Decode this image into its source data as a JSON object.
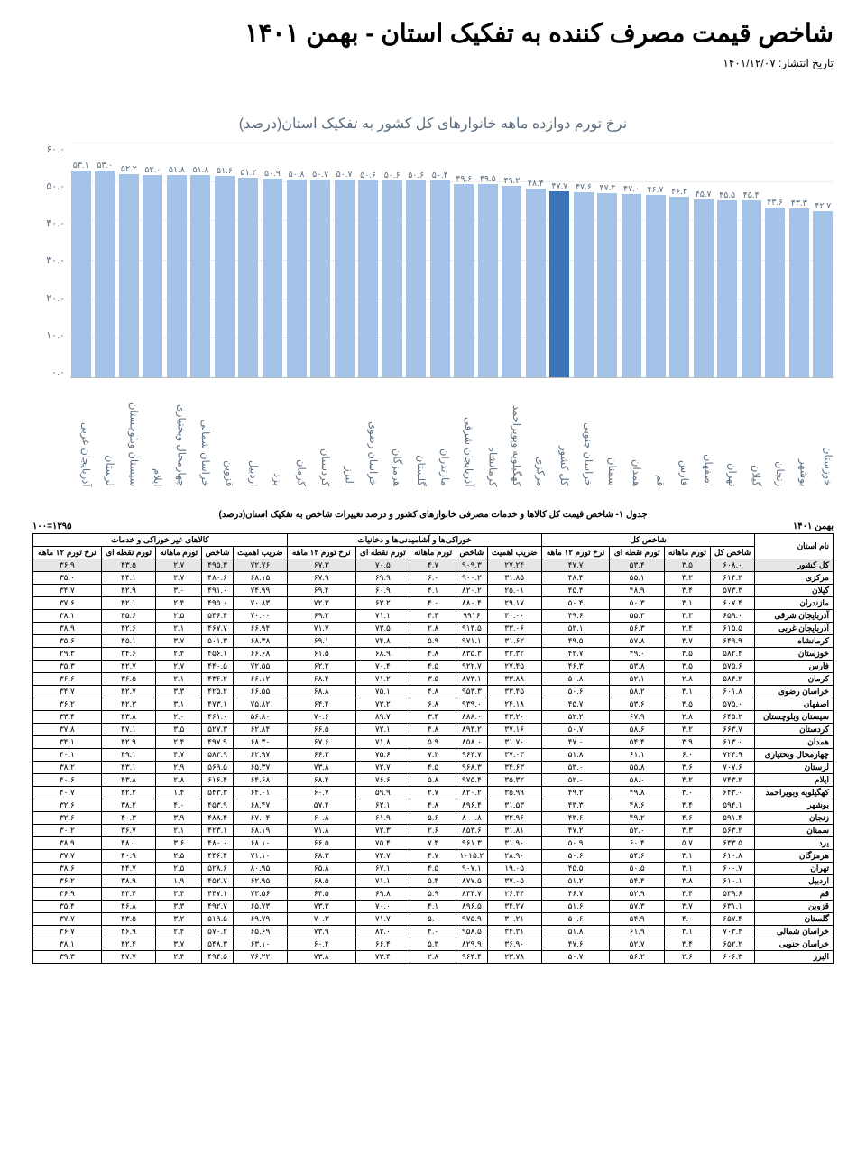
{
  "title": "شاخص قیمت مصرف کننده به تفکیک استان - بهمن ۱۴۰۱",
  "publish_label": "تاریخ انتشار: ۱۴۰۱/۱۲/۰۷",
  "chart": {
    "title": "نرخ تورم دوازده ماهه خانوارهای کل کشور به تفکیک استان(درصد)",
    "ymax": 60,
    "ytick_step": 10,
    "yticks": [
      "۶۰.۰",
      "۵۰.۰",
      "۴۰.۰",
      "۳۰.۰",
      "۲۰.۰",
      "۱۰.۰",
      "۰.۰"
    ],
    "bar_color": "#a3c4e8",
    "highlight_color": "#3b74b9",
    "bg": "#ffffff",
    "bars": [
      {
        "label": "آذربایجان غربی",
        "value_txt": "۵۳.۱",
        "value": 53.1
      },
      {
        "label": "لرستان",
        "value_txt": "۵۳.۰",
        "value": 53.0
      },
      {
        "label": "سیستان وبلوچستان",
        "value_txt": "۵۲.۲",
        "value": 52.2
      },
      {
        "label": "ایلام",
        "value_txt": "۵۲.۰",
        "value": 52.0
      },
      {
        "label": "چهارمحال وبختیاری",
        "value_txt": "۵۱.۸",
        "value": 51.8
      },
      {
        "label": "خراسان شمالی",
        "value_txt": "۵۱.۸",
        "value": 51.8
      },
      {
        "label": "قزوین",
        "value_txt": "۵۱.۶",
        "value": 51.6
      },
      {
        "label": "اردبیل",
        "value_txt": "۵۱.۲",
        "value": 51.2
      },
      {
        "label": "یزد",
        "value_txt": "۵۰.۹",
        "value": 50.9
      },
      {
        "label": "کرمان",
        "value_txt": "۵۰.۸",
        "value": 50.8
      },
      {
        "label": "کردستان",
        "value_txt": "۵۰.۷",
        "value": 50.7
      },
      {
        "label": "البرز",
        "value_txt": "۵۰.۷",
        "value": 50.7
      },
      {
        "label": "خراسان رضوی",
        "value_txt": "۵۰.۶",
        "value": 50.6
      },
      {
        "label": "هرمزگان",
        "value_txt": "۵۰.۶",
        "value": 50.6
      },
      {
        "label": "گلستان",
        "value_txt": "۵۰.۶",
        "value": 50.6
      },
      {
        "label": "مازندران",
        "value_txt": "۵۰.۴",
        "value": 50.4
      },
      {
        "label": "آذربایجان شرقی",
        "value_txt": "۴۹.۶",
        "value": 49.6
      },
      {
        "label": "کرمانشاه",
        "value_txt": "۴۹.۵",
        "value": 49.5
      },
      {
        "label": "کهگیلویه وبویراحمد",
        "value_txt": "۴۹.۲",
        "value": 49.2
      },
      {
        "label": "مرکزی",
        "value_txt": "۴۸.۴",
        "value": 48.4
      },
      {
        "label": "کل کشور",
        "value_txt": "۴۷.۷",
        "value": 47.7,
        "highlight": true
      },
      {
        "label": "خراسان جنوبی",
        "value_txt": "۴۷.۶",
        "value": 47.6
      },
      {
        "label": "سمنان",
        "value_txt": "۴۷.۲",
        "value": 47.2
      },
      {
        "label": "همدان",
        "value_txt": "۴۷.۰",
        "value": 47.0
      },
      {
        "label": "قم",
        "value_txt": "۴۶.۷",
        "value": 46.7
      },
      {
        "label": "فارس",
        "value_txt": "۴۶.۳",
        "value": 46.3
      },
      {
        "label": "اصفهان",
        "value_txt": "۴۵.۷",
        "value": 45.7
      },
      {
        "label": "تهران",
        "value_txt": "۴۵.۵",
        "value": 45.5
      },
      {
        "label": "گیلان",
        "value_txt": "۴۵.۴",
        "value": 45.4
      },
      {
        "label": "زنجان",
        "value_txt": "۴۳.۶",
        "value": 43.6
      },
      {
        "label": "بوشهر",
        "value_txt": "۴۳.۳",
        "value": 43.3
      },
      {
        "label": "خوزستان",
        "value_txt": "۴۲.۷",
        "value": 42.7
      }
    ]
  },
  "table": {
    "caption": "جدول ۱- شاخص قیمت کل کالاها و خدمات مصرفی خانوارهای کشور و درصد تغییرات شاخص به تفکیک استان(درصد)",
    "right_meta": "بهمن ۱۴۰۱",
    "left_meta": "۱۳۹۵=۱۰۰",
    "group_headers": [
      "نام استان",
      "شاخص کل",
      "خوراکی‌ها و آشامیدنی‌ها و دخانیات",
      "کالاهای غیر خوراکی و خدمات"
    ],
    "sub_headers_main": [
      "شاخص کل",
      "تورم ماهانه",
      "تورم نقطه ای",
      "نرخ تورم ۱۲ ماهه"
    ],
    "sub_headers_food": [
      "ضریب اهمیت",
      "شاخص",
      "تورم ماهانه",
      "تورم نقطه ای",
      "نرخ تورم ۱۲ ماهه"
    ],
    "sub_headers_nonfood": [
      "ضریب اهمیت",
      "شاخص",
      "تورم ماهانه",
      "تورم نقطه ای",
      "نرخ تورم ۱۲ ماهه"
    ],
    "rows": [
      {
        "name": "کل کشور",
        "hl": true,
        "c": [
          "۶۰۸.۰",
          "۳.۵",
          "۵۳.۴",
          "۴۷.۷",
          "۲۷.۲۴",
          "۹۰۹.۳",
          "۴.۷",
          "۷۰.۵",
          "۶۷.۳",
          "۷۲.۷۶",
          "۴۹۵.۳",
          "۲.۷",
          "۴۳.۵",
          "۳۶.۹"
        ]
      },
      {
        "name": "مرکزی",
        "c": [
          "۶۱۴.۲",
          "۴.۲",
          "۵۵.۱",
          "۴۸.۴",
          "۳۱.۸۵",
          "۹۰۰.۲",
          "۶.۰",
          "۶۹.۹",
          "۶۷.۹",
          "۶۸.۱۵",
          "۴۸۰.۶",
          "۲.۷",
          "۴۴.۱",
          "۳۵.۰"
        ]
      },
      {
        "name": "گیلان",
        "c": [
          "۵۷۳.۳",
          "۳.۴",
          "۴۸.۹",
          "۴۵.۴",
          "۲۵.۰۱",
          "۸۲۰.۲",
          "۴.۱",
          "۶۰.۹",
          "۶۹.۴",
          "۷۴.۹۹",
          "۴۹۱.۰",
          "۳.۰",
          "۴۲.۹",
          "۳۴.۷"
        ]
      },
      {
        "name": "مازندران",
        "c": [
          "۶۰۷.۴",
          "۳.۱",
          "۵۰.۳",
          "۵۰.۴",
          "۲۹.۱۷",
          "۸۸۰.۴",
          "۴.۰",
          "۶۳.۲",
          "۷۲.۳",
          "۷۰.۸۳",
          "۴۹۵.۰",
          "۲.۴",
          "۴۲.۱",
          "۳۷.۶"
        ]
      },
      {
        "name": "آذربایجان شرقی",
        "c": [
          "۶۵۹.۰",
          "۳.۳",
          "۵۵.۳",
          "۴۹.۶",
          "۳۰.۰۰",
          "۹۹۱۶",
          "۴.۴",
          "۷۱.۱",
          "۶۹.۲",
          "۷۰.۰۰",
          "۵۴۶.۴",
          "۲.۵",
          "۴۵.۶",
          "۳۸.۱"
        ]
      },
      {
        "name": "آذربایجان غربی",
        "c": [
          "۶۱۵.۵",
          "۲.۴",
          "۵۶.۳",
          "۵۳.۱",
          "۳۳.۰۶",
          "۹۱۴.۵",
          "۲.۸",
          "۷۳.۵",
          "۷۱.۷",
          "۶۶.۹۴",
          "۴۶۷.۷",
          "۲.۱",
          "۴۲.۶",
          "۳۸.۹"
        ]
      },
      {
        "name": "کرمانشاه",
        "c": [
          "۶۴۹.۹",
          "۴.۷",
          "۵۷.۸",
          "۴۹.۵",
          "۳۱.۶۲",
          "۹۷۱.۱",
          "۵.۹",
          "۷۴.۸",
          "۶۹.۱",
          "۶۸.۳۸",
          "۵۰۱.۳",
          "۳.۷",
          "۴۵.۱",
          "۳۵.۶"
        ]
      },
      {
        "name": "خوزستان",
        "c": [
          "۵۸۲.۴",
          "۳.۵",
          "۴۹.۰",
          "۴۲.۷",
          "۳۳.۳۲",
          "۸۳۵.۳",
          "۴.۸",
          "۶۸.۹",
          "۶۱.۵",
          "۶۶.۶۸",
          "۴۵۶.۱",
          "۲.۴",
          "۳۴.۶",
          "۲۹.۳"
        ]
      },
      {
        "name": "فارس",
        "c": [
          "۵۷۵.۶",
          "۳.۵",
          "۵۳.۸",
          "۴۶.۳",
          "۲۷.۴۵",
          "۹۲۲.۷",
          "۴.۵",
          "۷۰.۴",
          "۶۲.۲",
          "۷۲.۵۵",
          "۴۴۰.۵",
          "۲.۷",
          "۴۲.۷",
          "۳۵.۳"
        ]
      },
      {
        "name": "کرمان",
        "c": [
          "۵۸۴.۲",
          "۲.۸",
          "۵۲.۱",
          "۵۰.۸",
          "۳۳.۸۸",
          "۸۷۳.۱",
          "۳.۵",
          "۷۱.۲",
          "۶۸.۴",
          "۶۶.۱۲",
          "۴۳۶.۲",
          "۲.۱",
          "۳۶.۵",
          "۳۶.۶"
        ]
      },
      {
        "name": "خراسان رضوی",
        "c": [
          "۶۰۱.۸",
          "۴.۱",
          "۵۸.۲",
          "۵۰.۶",
          "۳۳.۴۵",
          "۹۵۳.۳",
          "۴.۸",
          "۷۵.۱",
          "۶۸.۸",
          "۶۶.۵۵",
          "۴۲۵.۲",
          "۳.۳",
          "۴۲.۷",
          "۳۴.۷"
        ]
      },
      {
        "name": "اصفهان",
        "c": [
          "۵۷۵.۰",
          "۴.۵",
          "۵۳.۶",
          "۴۵.۷",
          "۲۴.۱۸",
          "۹۳۹.۰",
          "۶.۸",
          "۷۳.۲",
          "۶۴.۴",
          "۷۵.۸۲",
          "۴۷۳.۱",
          "۳.۱",
          "۴۲.۳",
          "۳۶.۲"
        ]
      },
      {
        "name": "سیستان وبلوچستان",
        "c": [
          "۶۴۵.۲",
          "۲.۸",
          "۶۷.۹",
          "۵۲.۲",
          "۴۳.۲۰",
          "۸۸۸.۰",
          "۳.۴",
          "۸۹.۷",
          "۷۰.۶",
          "۵۶.۸۰",
          "۴۶۱.۰",
          "۲.۰",
          "۴۳.۸",
          "۳۳.۴"
        ]
      },
      {
        "name": "کردستان",
        "c": [
          "۶۶۳.۷",
          "۴.۲",
          "۵۸.۶",
          "۵۰.۷",
          "۳۷.۱۶",
          "۸۹۴.۲",
          "۴.۸",
          "۷۲.۱",
          "۶۶.۵",
          "۶۲.۸۴",
          "۵۲۷.۳",
          "۳.۵",
          "۴۷.۱",
          "۳۷.۸"
        ]
      },
      {
        "name": "همدان",
        "c": [
          "۶۱۳.۰",
          "۳.۹",
          "۵۴.۴",
          "۴۷.۰",
          "۳۱.۷۰",
          "۸۵۸.۰",
          "۵.۹",
          "۷۱.۸",
          "۶۷.۶",
          "۶۸.۳۰",
          "۴۹۷.۹",
          "۲.۴",
          "۴۲.۹",
          "۳۴.۱"
        ]
      },
      {
        "name": "چهارمحال وبختیاری",
        "c": [
          "۷۲۴.۹",
          "۶.۰",
          "۶۱.۱",
          "۵۱.۸",
          "۳۷.۰۳",
          "۹۶۴.۷",
          "۷.۳",
          "۷۵.۶",
          "۶۶.۳",
          "۶۲.۹۷",
          "۵۸۳.۹",
          "۴.۷",
          "۴۹.۱",
          "۴۰.۱"
        ]
      },
      {
        "name": "لرستان",
        "c": [
          "۷۰۷.۶",
          "۳.۶",
          "۵۵.۸",
          "۵۳.۰",
          "۳۴.۶۳",
          "۹۶۸.۳",
          "۴.۵",
          "۷۲.۷",
          "۷۳.۸",
          "۶۵.۳۷",
          "۵۶۹.۵",
          "۲.۹",
          "۴۳.۱",
          "۳۸.۲"
        ]
      },
      {
        "name": "ایلام",
        "c": [
          "۷۴۳.۲",
          "۴.۲",
          "۵۸.۰",
          "۵۲.۰",
          "۳۵.۳۲",
          "۹۷۵.۴",
          "۵.۸",
          "۷۶.۶",
          "۶۸.۴",
          "۶۴.۶۸",
          "۶۱۶.۴",
          "۲.۸",
          "۴۳.۸",
          "۴۰.۶"
        ]
      },
      {
        "name": "کهگیلویه وبویراحمد",
        "c": [
          "۶۴۳.۰",
          "۳.۰",
          "۴۹.۸",
          "۴۹.۲",
          "۳۵.۹۹",
          "۸۲۰.۲",
          "۲.۷",
          "۵۹.۹",
          "۶۰.۷",
          "۶۴.۰۱",
          "۵۴۳.۳",
          "۱.۴",
          "۴۲.۲",
          "۴۰.۷"
        ]
      },
      {
        "name": "بوشهر",
        "c": [
          "۵۹۴.۱",
          "۴.۴",
          "۴۸.۶",
          "۴۳.۳",
          "۳۱.۵۳",
          "۸۹۶.۴",
          "۴.۸",
          "۶۲.۱",
          "۵۷.۴",
          "۶۸.۴۷",
          "۴۵۳.۹",
          "۴.۰",
          "۳۸.۲",
          "۳۲.۶"
        ]
      },
      {
        "name": "زنجان",
        "c": [
          "۵۹۱.۴",
          "۴.۶",
          "۴۹.۲",
          "۴۳.۶",
          "۳۲.۹۶",
          "۸۰۰.۸",
          "۵.۶",
          "۶۱.۹",
          "۶۰.۸",
          "۶۷.۰۴",
          "۴۸۸.۴",
          "۳.۹",
          "۴۰.۳",
          "۳۲.۶"
        ]
      },
      {
        "name": "سمنان",
        "c": [
          "۵۶۳.۲",
          "۳.۳",
          "۵۲.۰",
          "۴۷.۲",
          "۳۱.۸۱",
          "۸۵۳.۶",
          "۲.۶",
          "۷۲.۳",
          "۷۱.۸",
          "۶۸.۱۹",
          "۴۲۳.۱",
          "۲.۱",
          "۳۶.۷",
          "۳۰.۲"
        ]
      },
      {
        "name": "یزد",
        "c": [
          "۶۳۳.۵",
          "۵.۷",
          "۶۰.۴",
          "۵۰.۹",
          "۳۱.۹۰",
          "۹۶۱.۳",
          "۷.۴",
          "۷۵.۴",
          "۶۶.۵",
          "۶۸.۱۰",
          "۴۸۰.۰",
          "۳.۶",
          "۴۸.۰",
          "۳۸.۹"
        ]
      },
      {
        "name": "هرمزگان",
        "c": [
          "۶۱۰.۸",
          "۳.۱",
          "۵۴.۶",
          "۵۰.۶",
          "۲۸.۹۰",
          "۱۰۱۵.۲",
          "۴.۷",
          "۷۲.۷",
          "۶۸.۳",
          "۷۱.۱۰",
          "۴۴۶.۴",
          "۲.۵",
          "۴۰.۹",
          "۳۷.۷"
        ]
      },
      {
        "name": "تهران",
        "c": [
          "۶۰۰.۷",
          "۳.۱",
          "۵۰.۵",
          "۴۵.۵",
          "۱۹.۰۵",
          "۹۰۷.۱",
          "۴.۵",
          "۶۷.۱",
          "۶۵.۸",
          "۸۰.۹۵",
          "۵۲۸.۶",
          "۲.۵",
          "۴۴.۷",
          "۳۸.۶"
        ]
      },
      {
        "name": "اردبیل",
        "c": [
          "۶۱۰.۱",
          "۳.۸",
          "۵۴.۴",
          "۵۱.۲",
          "۳۷.۰۵",
          "۸۷۷.۵",
          "۵.۴",
          "۷۱.۱",
          "۶۸.۵",
          "۶۲.۹۵",
          "۴۵۲.۷",
          "۱.۹",
          "۳۸.۹",
          "۳۶.۲"
        ]
      },
      {
        "name": "قم",
        "c": [
          "۵۳۹.۶",
          "۴.۴",
          "۵۲.۹",
          "۴۶.۷",
          "۲۶.۴۴",
          "۸۳۴.۷",
          "۵.۹",
          "۶۹.۸",
          "۶۴.۵",
          "۷۳.۵۶",
          "۴۴۷.۱",
          "۳.۴",
          "۴۳.۴",
          "۳۶.۹"
        ]
      },
      {
        "name": "قزوین",
        "c": [
          "۶۳۱.۱",
          "۳.۷",
          "۵۷.۳",
          "۵۱.۶",
          "۳۴.۲۷",
          "۸۹۶.۵",
          "۴.۱",
          "۷۰.۰",
          "۷۳.۳",
          "۶۵.۷۳",
          "۴۹۲.۷",
          "۳.۳",
          "۴۶.۸",
          "۳۵.۴"
        ]
      },
      {
        "name": "گلستان",
        "c": [
          "۶۵۷.۴",
          "۴.۰",
          "۵۴.۹",
          "۵۰.۶",
          "۳۰.۲۱",
          "۹۷۵.۹",
          "۵.۰",
          "۷۱.۷",
          "۷۰.۳",
          "۶۹.۷۹",
          "۵۱۹.۵",
          "۳.۲",
          "۴۳.۵",
          "۳۷.۷"
        ]
      },
      {
        "name": "خراسان شمالی",
        "c": [
          "۷۰۳.۴",
          "۳.۱",
          "۶۱.۹",
          "۵۱.۸",
          "۳۴.۳۱",
          "۹۵۸.۵",
          "۴.۰",
          "۸۳.۰",
          "۷۳.۹",
          "۶۵.۶۹",
          "۵۷۰.۲",
          "۲.۴",
          "۴۶.۹",
          "۳۶.۷"
        ]
      },
      {
        "name": "خراسان جنوبی",
        "c": [
          "۶۵۲.۲",
          "۴.۴",
          "۵۲.۷",
          "۴۷.۶",
          "۳۶.۹۰",
          "۸۲۹.۹",
          "۵.۳",
          "۶۶.۴",
          "۶۰.۴",
          "۶۳.۱۰",
          "۵۴۸.۳",
          "۳.۷",
          "۴۲.۴",
          "۳۸.۱"
        ]
      },
      {
        "name": "البرز",
        "c": [
          "۶۰۶.۳",
          "۲.۶",
          "۵۶.۲",
          "۵۰.۷",
          "۲۳.۷۸",
          "۹۶۴.۴",
          "۲.۸",
          "۷۳.۴",
          "۷۳.۸",
          "۷۶.۲۲",
          "۴۹۴.۵",
          "۲.۴",
          "۴۷.۷",
          "۳۹.۳"
        ]
      }
    ]
  }
}
